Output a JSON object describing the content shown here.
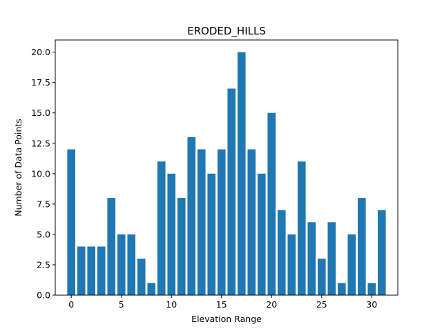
{
  "chart_data": {
    "type": "bar",
    "title": "ERODED_HILLS",
    "xlabel": "Elevation Range",
    "ylabel": "Number of Data Points",
    "x": [
      0,
      1,
      2,
      3,
      4,
      5,
      6,
      7,
      8,
      9,
      10,
      11,
      12,
      13,
      14,
      15,
      16,
      17,
      18,
      19,
      20,
      21,
      22,
      23,
      24,
      25,
      26,
      27,
      28,
      29,
      30,
      31
    ],
    "values": [
      12,
      4,
      4,
      4,
      8,
      5,
      5,
      3,
      1,
      11,
      10,
      8,
      13,
      12,
      10,
      12,
      17,
      20,
      12,
      10,
      15,
      7,
      5,
      11,
      6,
      3,
      6,
      1,
      5,
      8,
      1,
      7
    ],
    "xlim": [
      -1.6,
      32.6
    ],
    "ylim": [
      0,
      21
    ],
    "xticks": [
      "0",
      "5",
      "10",
      "15",
      "20",
      "25",
      "30"
    ],
    "yticks": [
      "0.0",
      "2.5",
      "5.0",
      "7.5",
      "10.0",
      "12.5",
      "15.0",
      "17.5",
      "20.0"
    ],
    "bar_color": "#1f77b4",
    "grid": false,
    "legend": "none"
  }
}
